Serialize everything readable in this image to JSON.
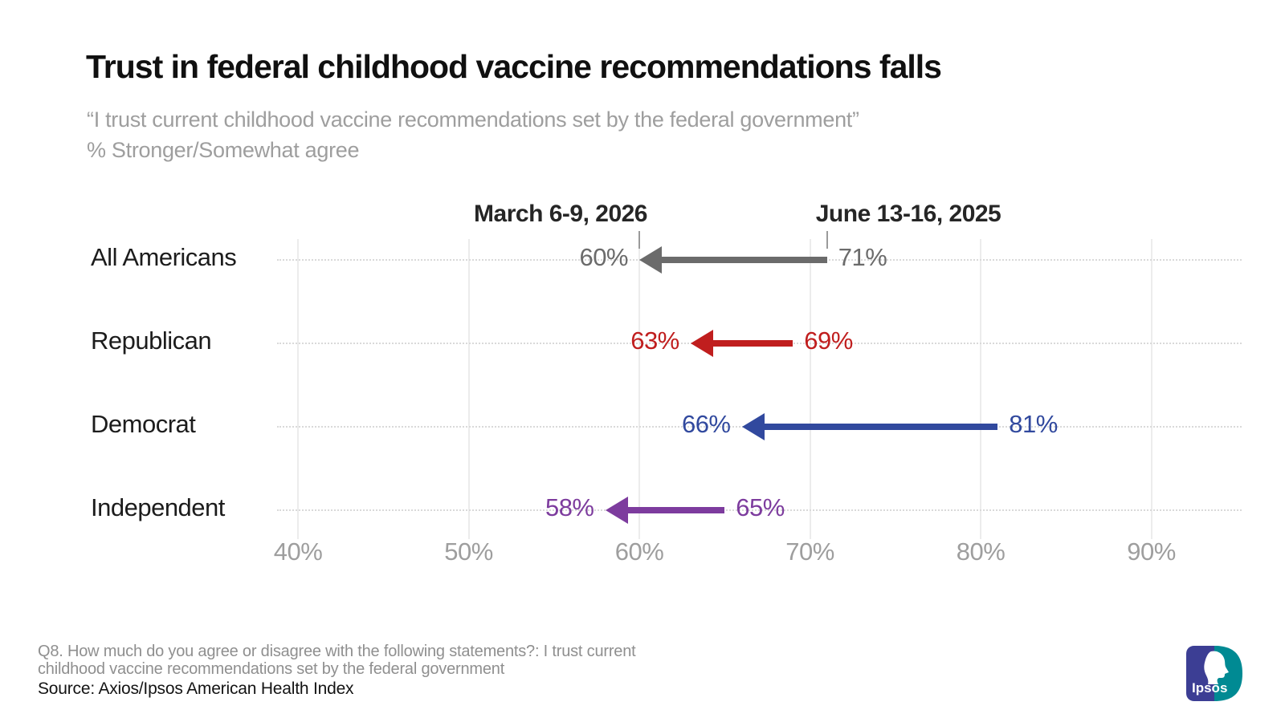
{
  "page": {
    "title": "Trust in federal childhood vaccine recommendations falls",
    "subtitle_line1": "“I trust current childhood vaccine recommendations set by the federal government”",
    "subtitle_line2": "% Stronger/Somewhat agree",
    "footnote_line1": "Q8. How much do you agree or disagree with the following statements?: I trust current",
    "footnote_line2": "childhood vaccine recommendations set by the federal government",
    "source": "Source: Axios/Ipsos American Health Index"
  },
  "logo": {
    "text": "Ipsos",
    "left_color": "#3c3e94",
    "right_color": "#008a93"
  },
  "chart_data": {
    "type": "arrow",
    "description": "Paired-date arrow (dumbbell) chart; each arrow points left from the June 13-16, 2025 value to the March 6-9, 2026 value, showing trust falling",
    "column_headers": [
      {
        "label": "March 6-9, 2026",
        "refers_to": "current"
      },
      {
        "label": "June 13-16, 2025",
        "refers_to": "previous"
      }
    ],
    "categories": [
      "All Americans",
      "Republican",
      "Democrat",
      "Independent"
    ],
    "series": [
      {
        "name": "March 6-9, 2026",
        "values": [
          60,
          63,
          66,
          58
        ]
      },
      {
        "name": "June 13-16, 2025",
        "values": [
          71,
          69,
          81,
          65
        ]
      }
    ],
    "category_colors": [
      "#6b6b6b",
      "#c01e1e",
      "#31499e",
      "#7d3c9e"
    ],
    "value_suffix": "%",
    "xticks": [
      40,
      50,
      60,
      70,
      80,
      90
    ],
    "xtick_suffix": "%",
    "xlim": [
      40,
      90
    ],
    "grid": {
      "vertical_gridlines": true,
      "dotted_row_lines": true
    },
    "legend_position": "column headers above first row with leader ticks"
  }
}
